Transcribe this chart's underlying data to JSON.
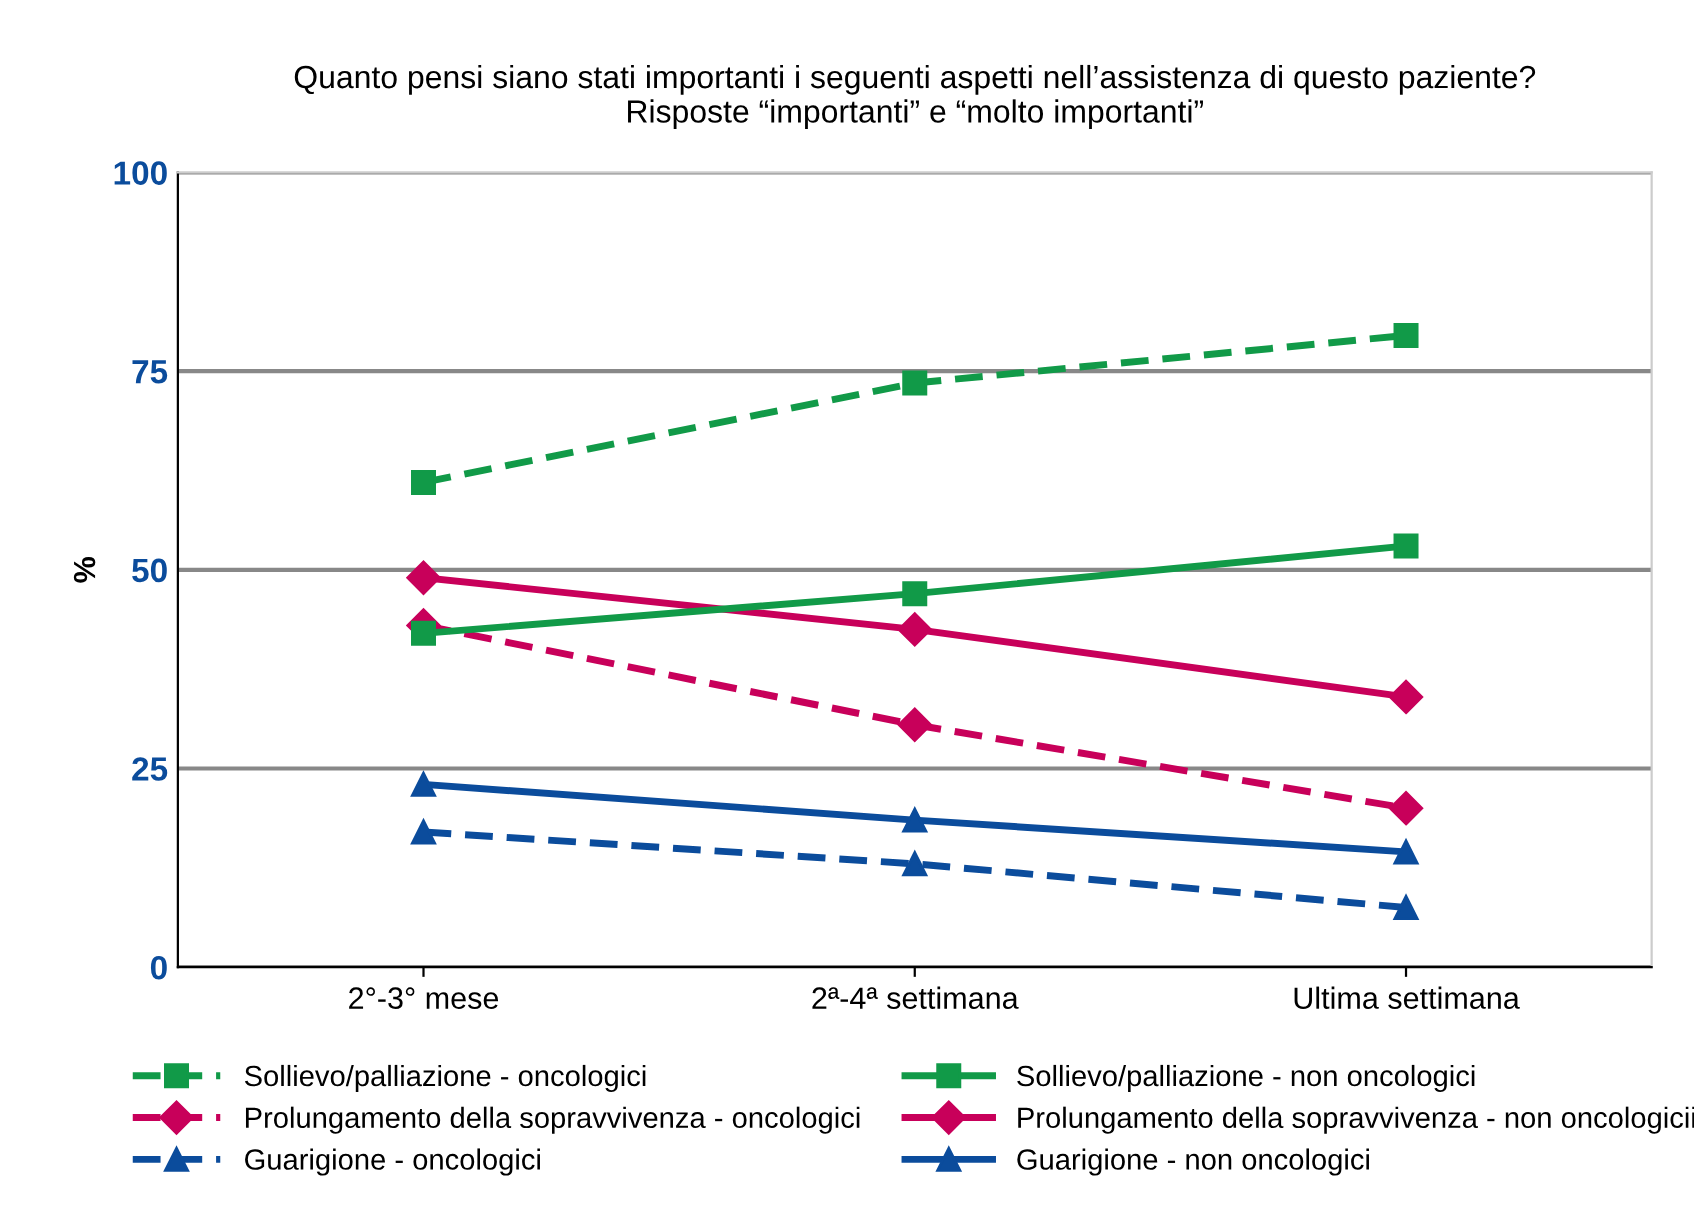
{
  "chart_data": {
    "type": "line",
    "title": "Quanto pensi siano stati importanti i seguenti aspetti nell’assistenza di questo paziente?\nRisposte “importanti” e “molto importanti”",
    "ylabel": "%",
    "categories": [
      "2°-3° mese",
      "2ª-4ª settimana",
      "Ultima settimana"
    ],
    "series": [
      {
        "name": "Sollievo/palliazione - oncologici",
        "color": "#119a48",
        "values": [
          61,
          73.5,
          79.5
        ],
        "marker": "square",
        "line_style": "dashed"
      },
      {
        "name": "Sollievo/palliazione - non oncologici",
        "color": "#119a48",
        "values": [
          42,
          47,
          53
        ],
        "marker": "square",
        "line_style": "solid"
      },
      {
        "name": "Prolungamento della sopravvivenza - oncologici",
        "color": "#c8005a",
        "values": [
          43,
          30.5,
          20
        ],
        "marker": "diamond",
        "line_style": "dashed"
      },
      {
        "name": "Prolungamento della sopravvivenza - non oncologicii",
        "color": "#c8005a",
        "values": [
          49,
          42.5,
          34
        ],
        "marker": "diamond",
        "line_style": "solid"
      },
      {
        "name": "Guarigione - oncologici",
        "color": "#0b4c9c",
        "values": [
          17,
          13,
          7.5
        ],
        "marker": "triangle",
        "line_style": "dashed"
      },
      {
        "name": "Guarigione - non oncologici",
        "color": "#0b4c9c",
        "values": [
          23,
          18.5,
          14.5
        ],
        "marker": "triangle",
        "line_style": "solid"
      }
    ],
    "ylim": [
      0,
      100
    ],
    "yticks": [
      0,
      25,
      50,
      75,
      100
    ],
    "grid": "y",
    "legend": "bottom"
  }
}
